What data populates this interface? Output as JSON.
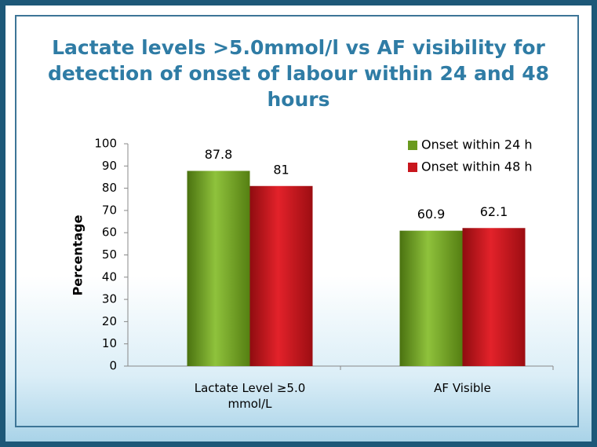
{
  "chart_data": {
    "type": "bar",
    "title": "Lactate levels >5.0mmol/l vs AF visibility for detection of onset of labour within 24 and 48 hours",
    "y_label": "Percentage",
    "categories": [
      "Lactate Level ≥5.0 mmol/L",
      "AF Visible"
    ],
    "series": [
      {
        "name": "Onset within 24 h",
        "color": "#6a9a1f",
        "values": [
          87.8,
          60.9
        ]
      },
      {
        "name": "Onset within 48 h",
        "color": "#c8161d",
        "values": [
          81,
          62.1
        ]
      }
    ],
    "ylim": [
      0,
      100
    ],
    "yticks": [
      0,
      10,
      20,
      30,
      40,
      50,
      60,
      70,
      80,
      90,
      100
    ],
    "legend": "upper right",
    "grid": false
  }
}
